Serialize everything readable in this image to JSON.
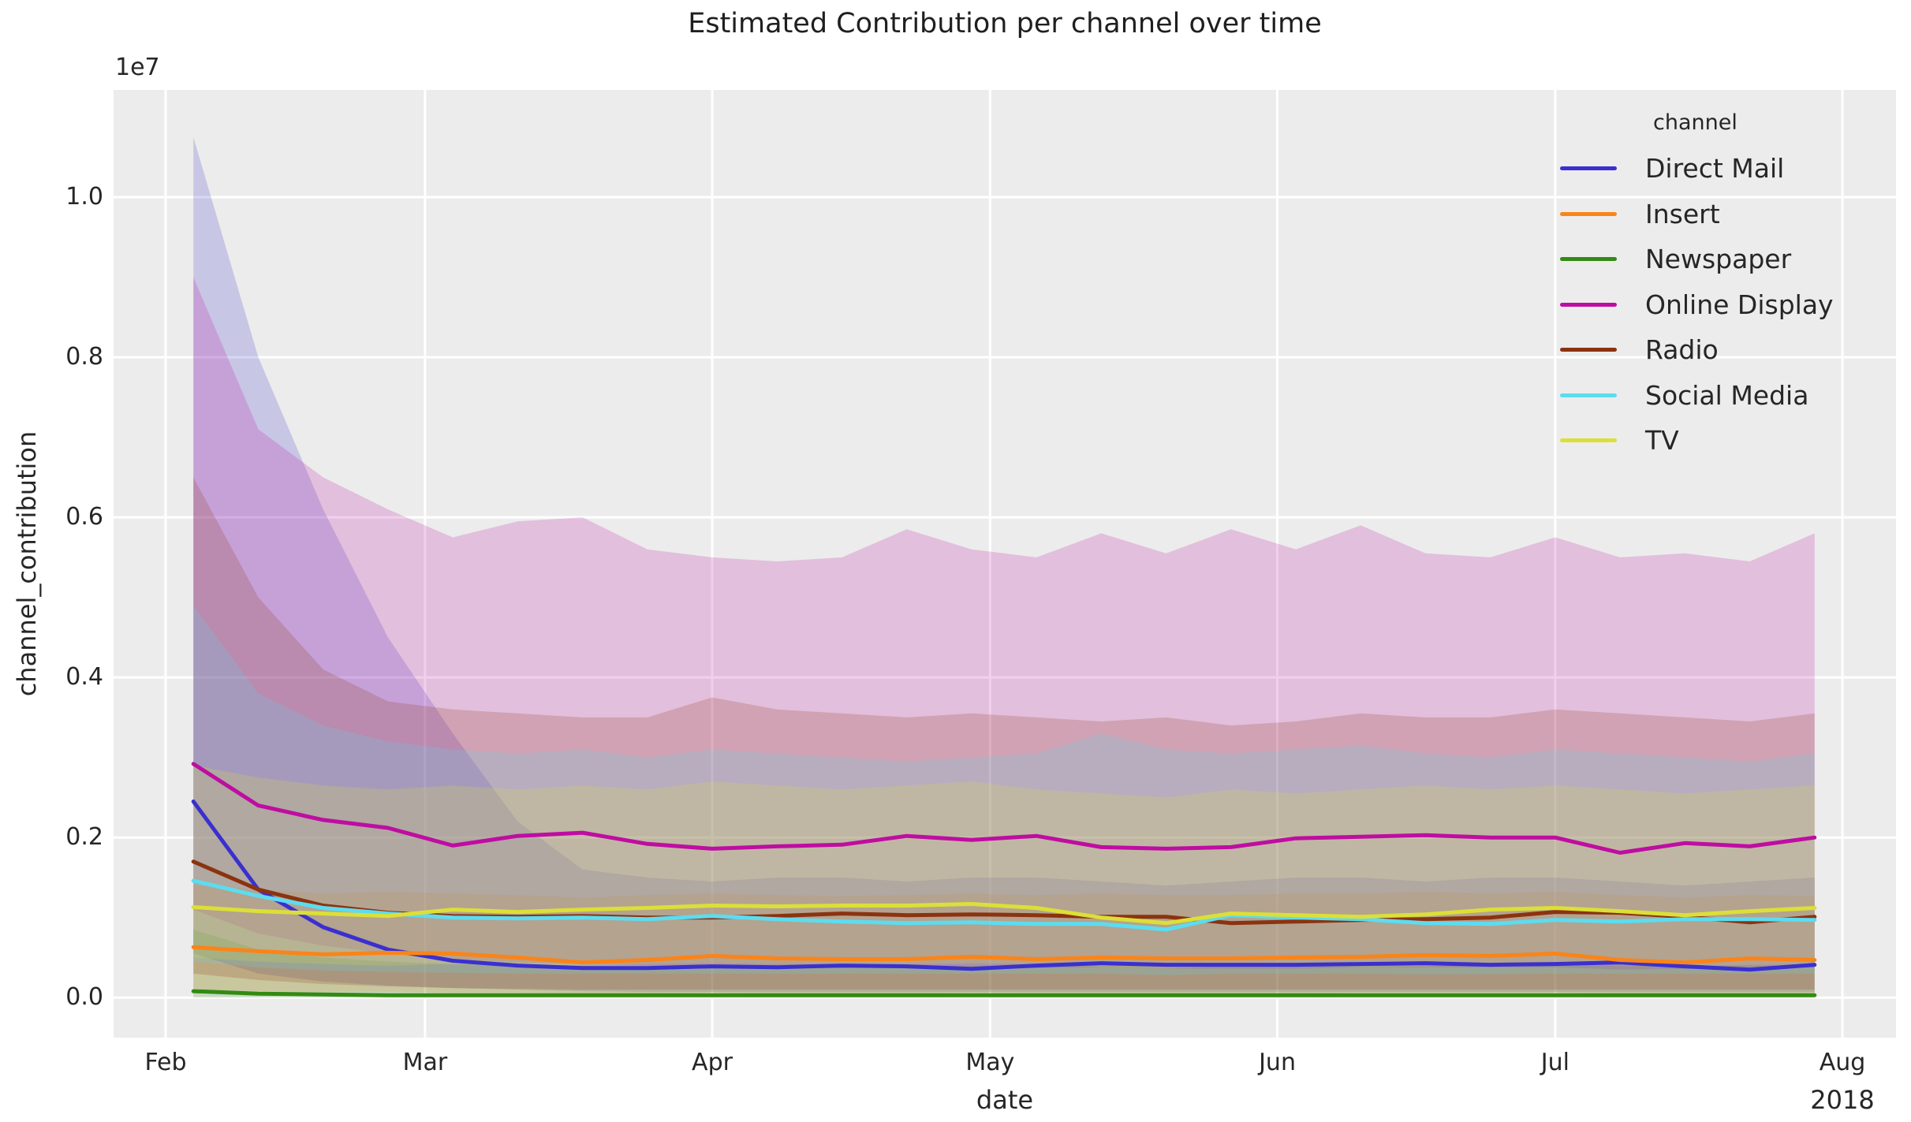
{
  "title": "Estimated Contribution per channel over time",
  "axes": {
    "xlabel": "date",
    "ylabel": "channel_contribution",
    "y_offset_label": "1e7",
    "x_year_label": "2018",
    "y_ticks": [
      "0.0",
      "0.2",
      "0.4",
      "0.6",
      "0.8",
      "1.0"
    ],
    "x_ticks": [
      "Feb",
      "Mar",
      "Apr",
      "May",
      "Jun",
      "Jul",
      "Aug"
    ]
  },
  "legend": {
    "title": "channel",
    "entries": [
      "Direct Mail",
      "Insert",
      "Newspaper",
      "Online Display",
      "Radio",
      "Social Media",
      "TV"
    ]
  },
  "chart_data": {
    "type": "line",
    "title": "Estimated Contribution per channel over time",
    "xlabel": "date",
    "ylabel": "channel_contribution",
    "value_unit": "1e6 (axis displayed with 1e7 offset)",
    "ylim": [
      -0.5,
      11.34
    ],
    "grid": true,
    "background": "#ececec",
    "gridline_color": "#ffffff",
    "legend_position": "upper right",
    "band_alpha": 0.2,
    "x_dates": [
      "2018-02-04",
      "2018-02-11",
      "2018-02-18",
      "2018-02-25",
      "2018-03-04",
      "2018-03-11",
      "2018-03-18",
      "2018-03-25",
      "2018-04-01",
      "2018-04-08",
      "2018-04-15",
      "2018-04-22",
      "2018-04-29",
      "2018-05-06",
      "2018-05-13",
      "2018-05-20",
      "2018-05-27",
      "2018-06-03",
      "2018-06-10",
      "2018-06-17",
      "2018-06-24",
      "2018-07-01",
      "2018-07-08",
      "2018-07-15",
      "2018-07-22",
      "2018-07-29"
    ],
    "month_tick_days": [
      0,
      28,
      59,
      89,
      120,
      150,
      181
    ],
    "series": [
      {
        "name": "Direct Mail",
        "color": "#3a30ce",
        "values": [
          2.45,
          1.35,
          0.88,
          0.6,
          0.46,
          0.4,
          0.37,
          0.37,
          0.39,
          0.38,
          0.4,
          0.39,
          0.36,
          0.4,
          0.43,
          0.41,
          0.41,
          0.41,
          0.42,
          0.43,
          0.41,
          0.42,
          0.44,
          0.39,
          0.35,
          0.41
        ],
        "ci_upper": [
          10.75,
          8.0,
          6.1,
          4.5,
          3.3,
          2.2,
          1.6,
          1.5,
          1.45,
          1.5,
          1.5,
          1.45,
          1.5,
          1.5,
          1.45,
          1.4,
          1.45,
          1.5,
          1.5,
          1.45,
          1.5,
          1.5,
          1.45,
          1.4,
          1.45,
          1.5
        ],
        "ci_lower": [
          0.55,
          0.3,
          0.2,
          0.15,
          0.12,
          0.1,
          0.08,
          0.07,
          0.07,
          0.07,
          0.07,
          0.07,
          0.07,
          0.07,
          0.07,
          0.07,
          0.07,
          0.07,
          0.07,
          0.07,
          0.07,
          0.07,
          0.07,
          0.07,
          0.07,
          0.07
        ]
      },
      {
        "name": "Insert",
        "color": "#fa8419",
        "values": [
          0.63,
          0.58,
          0.54,
          0.56,
          0.55,
          0.5,
          0.44,
          0.47,
          0.52,
          0.49,
          0.48,
          0.48,
          0.51,
          0.48,
          0.5,
          0.49,
          0.49,
          0.5,
          0.51,
          0.53,
          0.52,
          0.55,
          0.47,
          0.44,
          0.49,
          0.47
        ],
        "ci_upper": [
          1.4,
          1.35,
          1.3,
          1.32,
          1.3,
          1.28,
          1.25,
          1.28,
          1.3,
          1.28,
          1.27,
          1.28,
          1.3,
          1.28,
          1.3,
          1.28,
          1.28,
          1.3,
          1.3,
          1.32,
          1.3,
          1.32,
          1.28,
          1.25,
          1.28,
          1.27
        ],
        "ci_lower": [
          0.1,
          0.08,
          0.07,
          0.07,
          0.06,
          0.06,
          0.05,
          0.05,
          0.06,
          0.05,
          0.05,
          0.05,
          0.06,
          0.05,
          0.05,
          0.05,
          0.05,
          0.05,
          0.06,
          0.06,
          0.06,
          0.06,
          0.05,
          0.05,
          0.05,
          0.05
        ]
      },
      {
        "name": "Newspaper",
        "color": "#338a13",
        "values": [
          0.08,
          0.05,
          0.04,
          0.03,
          0.03,
          0.03,
          0.03,
          0.03,
          0.03,
          0.03,
          0.03,
          0.03,
          0.03,
          0.03,
          0.03,
          0.03,
          0.03,
          0.03,
          0.03,
          0.03,
          0.03,
          0.03,
          0.03,
          0.03,
          0.03,
          0.03
        ],
        "ci_upper": [
          0.85,
          0.6,
          0.5,
          0.45,
          0.42,
          0.4,
          0.4,
          0.4,
          0.4,
          0.4,
          0.4,
          0.4,
          0.4,
          0.4,
          0.4,
          0.4,
          0.4,
          0.4,
          0.4,
          0.4,
          0.4,
          0.4,
          0.4,
          0.4,
          0.4,
          0.4
        ],
        "ci_lower": [
          0.0,
          0.0,
          0.0,
          0.0,
          0.0,
          0.0,
          0.0,
          0.0,
          0.0,
          0.0,
          0.0,
          0.0,
          0.0,
          0.0,
          0.0,
          0.0,
          0.0,
          0.0,
          0.0,
          0.0,
          0.0,
          0.0,
          0.0,
          0.0,
          0.0,
          0.0
        ]
      },
      {
        "name": "Online Display",
        "color": "#bf0da2",
        "values": [
          2.92,
          2.4,
          2.22,
          2.12,
          1.9,
          2.02,
          2.06,
          1.92,
          1.86,
          1.89,
          1.91,
          2.02,
          1.97,
          2.02,
          1.88,
          1.86,
          1.88,
          1.99,
          2.01,
          2.03,
          2.0,
          2.0,
          1.81,
          1.93,
          1.89,
          2.0
        ],
        "ci_upper": [
          9.0,
          7.1,
          6.5,
          6.1,
          5.75,
          5.95,
          6.0,
          5.6,
          5.5,
          5.45,
          5.5,
          5.85,
          5.6,
          5.5,
          5.8,
          5.55,
          5.85,
          5.6,
          5.9,
          5.55,
          5.5,
          5.75,
          5.5,
          5.55,
          5.45,
          5.8
        ],
        "ci_lower": [
          1.1,
          0.8,
          0.65,
          0.55,
          0.48,
          0.44,
          0.42,
          0.4,
          0.38,
          0.37,
          0.37,
          0.38,
          0.38,
          0.37,
          0.38,
          0.36,
          0.36,
          0.36,
          0.38,
          0.38,
          0.38,
          0.38,
          0.35,
          0.36,
          0.36,
          0.38
        ]
      },
      {
        "name": "Radio",
        "color": "#8b3310",
        "values": [
          1.7,
          1.35,
          1.15,
          1.06,
          1.02,
          1.01,
          1.02,
          1.0,
          1.0,
          1.02,
          1.05,
          1.03,
          1.04,
          1.03,
          1.01,
          1.01,
          0.93,
          0.95,
          0.97,
          0.98,
          1.0,
          1.07,
          1.06,
          1.01,
          0.94,
          1.01
        ],
        "ci_upper": [
          6.5,
          5.0,
          4.1,
          3.7,
          3.6,
          3.55,
          3.5,
          3.5,
          3.75,
          3.6,
          3.55,
          3.5,
          3.55,
          3.5,
          3.45,
          3.5,
          3.4,
          3.45,
          3.55,
          3.5,
          3.5,
          3.6,
          3.55,
          3.5,
          3.45,
          3.55
        ],
        "ci_lower": [
          0.3,
          0.22,
          0.17,
          0.14,
          0.12,
          0.11,
          0.1,
          0.1,
          0.1,
          0.1,
          0.1,
          0.1,
          0.1,
          0.1,
          0.1,
          0.1,
          0.1,
          0.1,
          0.1,
          0.1,
          0.1,
          0.1,
          0.1,
          0.1,
          0.1,
          0.1
        ]
      },
      {
        "name": "Social Media",
        "color": "#5cdcf0",
        "values": [
          1.46,
          1.27,
          1.12,
          1.05,
          1.0,
          0.99,
          1.0,
          0.98,
          1.02,
          0.98,
          0.95,
          0.93,
          0.94,
          0.92,
          0.92,
          0.85,
          1.03,
          1.0,
          0.98,
          0.93,
          0.92,
          0.97,
          0.95,
          0.98,
          0.98,
          0.97
        ],
        "ci_upper": [
          4.9,
          3.8,
          3.4,
          3.2,
          3.1,
          3.05,
          3.1,
          3.0,
          3.1,
          3.05,
          3.0,
          2.95,
          3.0,
          3.05,
          3.3,
          3.1,
          3.05,
          3.1,
          3.15,
          3.05,
          3.0,
          3.1,
          3.05,
          3.0,
          2.95,
          3.05
        ],
        "ci_lower": [
          0.45,
          0.38,
          0.34,
          0.32,
          0.31,
          0.3,
          0.3,
          0.3,
          0.3,
          0.3,
          0.3,
          0.3,
          0.3,
          0.3,
          0.3,
          0.28,
          0.3,
          0.3,
          0.3,
          0.29,
          0.29,
          0.3,
          0.3,
          0.3,
          0.3,
          0.3
        ]
      },
      {
        "name": "TV",
        "color": "#dcdf38",
        "values": [
          1.13,
          1.08,
          1.05,
          1.02,
          1.1,
          1.07,
          1.1,
          1.12,
          1.15,
          1.14,
          1.15,
          1.15,
          1.17,
          1.12,
          1.0,
          0.93,
          1.05,
          1.03,
          1.01,
          1.04,
          1.1,
          1.12,
          1.08,
          1.03,
          1.08,
          1.12
        ],
        "ci_upper": [
          2.9,
          2.75,
          2.65,
          2.6,
          2.65,
          2.6,
          2.65,
          2.6,
          2.7,
          2.65,
          2.6,
          2.65,
          2.7,
          2.6,
          2.55,
          2.5,
          2.6,
          2.55,
          2.6,
          2.65,
          2.6,
          2.65,
          2.6,
          2.55,
          2.6,
          2.65
        ],
        "ci_lower": [
          0.5,
          0.45,
          0.42,
          0.4,
          0.42,
          0.4,
          0.41,
          0.42,
          0.43,
          0.42,
          0.42,
          0.42,
          0.43,
          0.42,
          0.38,
          0.36,
          0.4,
          0.39,
          0.38,
          0.39,
          0.41,
          0.42,
          0.41,
          0.39,
          0.41,
          0.42
        ]
      }
    ]
  }
}
